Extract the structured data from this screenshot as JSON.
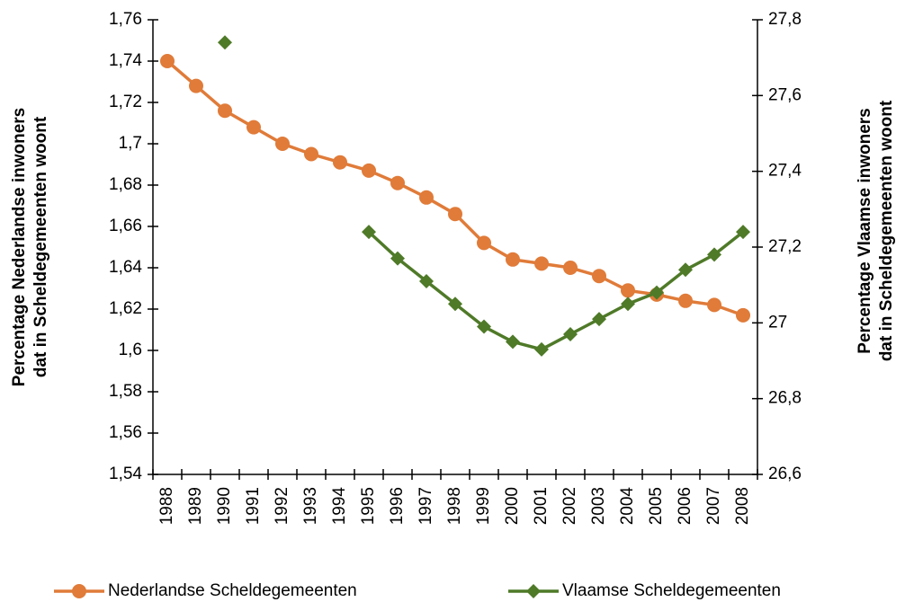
{
  "chart_data": {
    "type": "line",
    "y_label": [
      "Percentage Nederlandse inwoners",
      "dat in Scheldegemeenten  woont"
    ],
    "y2_label": [
      "Percentage  Vlaamse inwoners",
      "dat in Scheldegemeenten  woont"
    ],
    "categories": [
      "1988",
      "1989",
      "1990",
      "1991",
      "1992",
      "1993",
      "1994",
      "1995",
      "1996",
      "1997",
      "1998",
      "1999",
      "2000",
      "2001",
      "2002",
      "2003",
      "2004",
      "2005",
      "2006",
      "2007",
      "2008"
    ],
    "series": [
      {
        "name": "Nederlandse Scheldegemeenten",
        "color": "#e07b39",
        "marker": "circle",
        "values": [
          1.74,
          1.728,
          1.716,
          1.708,
          1.7,
          1.695,
          1.691,
          1.687,
          1.681,
          1.674,
          1.666,
          1.652,
          1.644,
          1.642,
          1.64,
          1.636,
          1.629,
          1.627,
          1.624,
          1.622,
          1.617
        ]
      },
      {
        "name": "Vlaamse Scheldegemeenten",
        "color": "#4f7a28",
        "marker": "diamond",
        "axis": "y2",
        "values": [
          null,
          null,
          27.74,
          null,
          null,
          null,
          null,
          27.24,
          27.17,
          27.11,
          27.05,
          26.99,
          26.95,
          26.93,
          26.97,
          27.01,
          27.05,
          27.08,
          27.14,
          27.18,
          27.24
        ]
      }
    ],
    "ylim": [
      1.54,
      1.76
    ],
    "yticks": [
      {
        "value": 1.54,
        "label": "1,54"
      },
      {
        "value": 1.56,
        "label": "1,56"
      },
      {
        "value": 1.58,
        "label": "1,58"
      },
      {
        "value": 1.6,
        "label": "1,6"
      },
      {
        "value": 1.62,
        "label": "1,62"
      },
      {
        "value": 1.64,
        "label": "1,64"
      },
      {
        "value": 1.66,
        "label": "1,66"
      },
      {
        "value": 1.68,
        "label": "1,68"
      },
      {
        "value": 1.7,
        "label": "1,7"
      },
      {
        "value": 1.72,
        "label": "1,72"
      },
      {
        "value": 1.74,
        "label": "1,74"
      },
      {
        "value": 1.76,
        "label": "1,76"
      }
    ],
    "y2lim": [
      26.6,
      27.8
    ],
    "y2ticks": [
      {
        "value": 26.6,
        "label": "26,6"
      },
      {
        "value": 26.8,
        "label": "26,8"
      },
      {
        "value": 27,
        "label": "27"
      },
      {
        "value": 27.2,
        "label": "27,2"
      },
      {
        "value": 27.4,
        "label": "27,4"
      },
      {
        "value": 27.6,
        "label": "27,6"
      },
      {
        "value": 27.8,
        "label": "27,8"
      }
    ],
    "grid": false
  }
}
